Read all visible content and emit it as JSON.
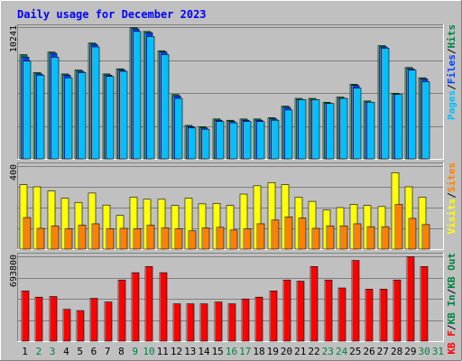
{
  "chart_data": {
    "type": "bar",
    "title": "Daily usage for December 2023",
    "colors": {
      "background": "#C0C0C0",
      "plot": "#C0C0C0",
      "hits": "#008040",
      "files": "#0040FF",
      "pages": "#00C0FF",
      "visits": "#FFFF00",
      "sites": "#FF8000",
      "kbytes": "#FF0000",
      "kb_in": "#008040",
      "kb_out": "#008040",
      "weekday_label": "#000000",
      "weekend_label": "#008040"
    },
    "x": [
      "1",
      "2",
      "3",
      "4",
      "5",
      "6",
      "7",
      "8",
      "9",
      "10",
      "11",
      "12",
      "13",
      "14",
      "15",
      "16",
      "17",
      "18",
      "19",
      "20",
      "21",
      "22",
      "23",
      "24",
      "25",
      "26",
      "27",
      "28",
      "29",
      "30",
      "31"
    ],
    "weekend_days": [
      "2",
      "3",
      "9",
      "10",
      "16",
      "17",
      "23",
      "24",
      "30",
      "31"
    ],
    "panels": [
      {
        "id": "hits_panel",
        "tick_label": "10241",
        "ylim": [
          0,
          10241
        ],
        "legend": [
          {
            "text": "Pages",
            "color": "#00C0FF"
          },
          {
            "text": "/",
            "color": "#000000"
          },
          {
            "text": "Files",
            "color": "#0040FF"
          },
          {
            "text": "/",
            "color": "#000000"
          },
          {
            "text": "Hits",
            "color": "#008040"
          }
        ],
        "series": [
          {
            "name": "Hits",
            "values": [
              8100,
              6700,
              8300,
              6600,
              6900,
              9000,
              6600,
              7000,
              10200,
              9900,
              8400,
              5000,
              2600,
              2500,
              3100,
              3000,
              3100,
              3100,
              3200,
              4100,
              4700,
              4700,
              4400,
              4800,
              5800,
              4500,
              8800,
              5100,
              7100,
              6300,
              0
            ]
          },
          {
            "name": "Files",
            "values": [
              7900,
              6600,
              8200,
              6500,
              6800,
              8900,
              6500,
              6900,
              10100,
              9800,
              8300,
              4900,
              2500,
              2400,
              3000,
              2900,
              3000,
              3000,
              3100,
              4000,
              4600,
              4600,
              4300,
              4700,
              5700,
              4400,
              8700,
              5000,
              7000,
              6200,
              0
            ]
          },
          {
            "name": "Pages",
            "values": [
              7600,
              6500,
              7900,
              6300,
              6700,
              8700,
              6400,
              6800,
              9900,
              9500,
              8100,
              4700,
              2400,
              2300,
              2900,
              2800,
              2900,
              2900,
              3000,
              3800,
              4600,
              4600,
              4300,
              4700,
              5500,
              4400,
              8600,
              5000,
              6900,
              6000,
              0
            ]
          }
        ]
      },
      {
        "id": "visits_panel",
        "tick_label": "400",
        "ylim": [
          0,
          400
        ],
        "legend": [
          {
            "text": "Visits",
            "color": "#FFFF00"
          },
          {
            "text": "/",
            "color": "#000000"
          },
          {
            "text": "Sites",
            "color": "#FF8000"
          }
        ],
        "series": [
          {
            "name": "Visits",
            "values": [
              310,
              300,
              280,
              245,
              225,
              270,
              212,
              162,
              250,
              240,
              240,
              210,
              245,
              218,
              220,
              210,
              265,
              305,
              320,
              310,
              250,
              230,
              188,
              200,
              215,
              210,
              205,
              368,
              300,
              250,
              0
            ]
          },
          {
            "name": "Sites",
            "values": [
              152,
              100,
              112,
              98,
              115,
              122,
              98,
              100,
              98,
              115,
              102,
              98,
              88,
              102,
              105,
              92,
              98,
              122,
              140,
              155,
              150,
              100,
              112,
              112,
              122,
              108,
              108,
              215,
              148,
              118,
              0
            ]
          }
        ]
      },
      {
        "id": "kbytes_panel",
        "tick_label": "693800",
        "ylim": [
          0,
          693800
        ],
        "legend": [
          {
            "text": "KB F",
            "color": "#FF0000"
          },
          {
            "text": "/",
            "color": "#000000"
          },
          {
            "text": "KB In",
            "color": "#008040"
          },
          {
            "text": "/",
            "color": "#000000"
          },
          {
            "text": "KB Out",
            "color": "#008040"
          }
        ],
        "series": [
          {
            "name": "KB F",
            "values": [
              410000,
              360000,
              365000,
              260000,
              250000,
              350000,
              320000,
              500000,
              560000,
              610000,
              560000,
              305000,
              305000,
              305000,
              320000,
              305000,
              345000,
              360000,
              410000,
              500000,
              490000,
              610000,
              500000,
              435000,
              660000,
              425000,
              425000,
              500000,
              690000,
              610000,
              0
            ]
          }
        ]
      }
    ]
  }
}
